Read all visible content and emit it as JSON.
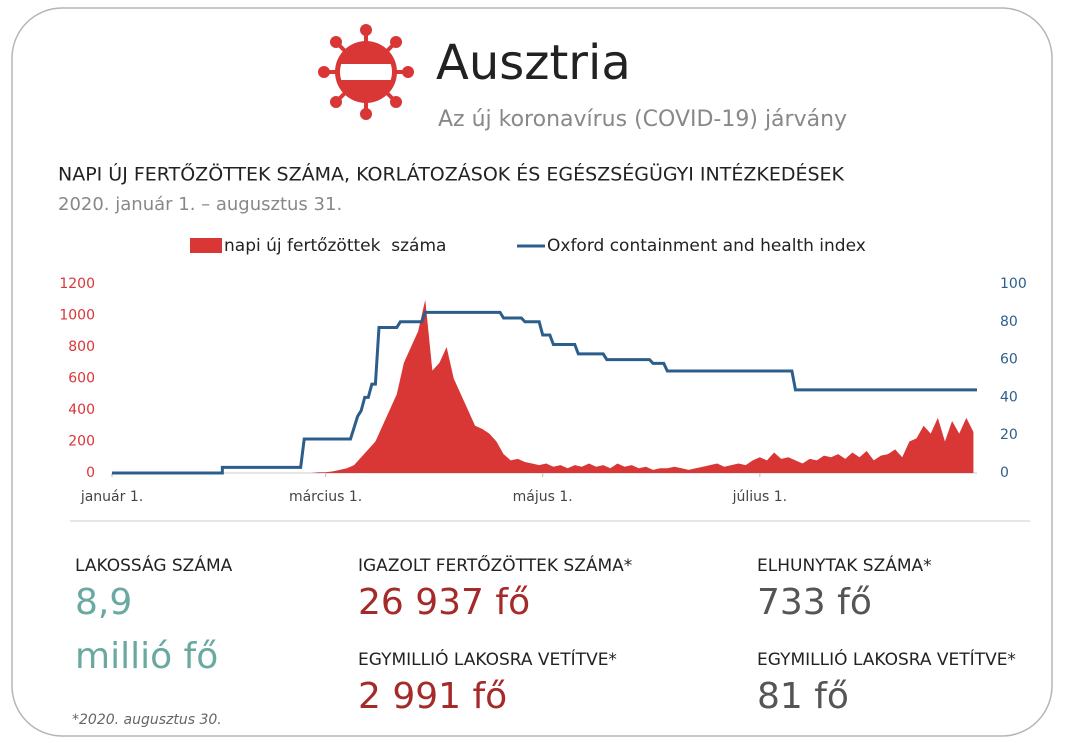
{
  "header": {
    "title": "Ausztria",
    "subtitle": "Az új koronavírus (COVID-19) járvány"
  },
  "chart_data": {
    "type": "line",
    "title": "NAPI ÚJ FERTŐZÖTTEK SZÁMA, KORLÁTOZÁSOK ÉS EGÉSZSÉGÜGYI INTÉZKEDÉSEK",
    "subtitle": "2020. január 1. – augusztus 31.",
    "xlim": [
      0,
      243
    ],
    "xticks": [
      {
        "value": 0,
        "label": "január 1."
      },
      {
        "value": 60,
        "label": "március 1."
      },
      {
        "value": 121,
        "label": "május 1."
      },
      {
        "value": 182,
        "label": "július 1."
      }
    ],
    "ylim": [
      0,
      1200
    ],
    "yticks": [
      0,
      200,
      400,
      600,
      800,
      1000,
      1200
    ],
    "y2lim": [
      0,
      100
    ],
    "y2ticks": [
      0,
      20,
      40,
      60,
      80,
      100
    ],
    "legend": "top",
    "series": [
      {
        "name": "napi új fertőzöttek  száma",
        "type": "area",
        "color": "#d93636",
        "x": [
          56,
          58,
          60,
          62,
          64,
          66,
          68,
          70,
          72,
          74,
          76,
          78,
          80,
          82,
          84,
          86,
          88,
          90,
          92,
          94,
          96,
          98,
          100,
          102,
          104,
          106,
          108,
          110,
          112,
          114,
          116,
          118,
          120,
          122,
          124,
          126,
          128,
          130,
          132,
          134,
          136,
          138,
          140,
          142,
          144,
          146,
          148,
          150,
          152,
          154,
          156,
          158,
          160,
          162,
          164,
          166,
          168,
          170,
          172,
          174,
          176,
          178,
          180,
          182,
          184,
          186,
          188,
          190,
          192,
          194,
          196,
          198,
          200,
          202,
          204,
          206,
          208,
          210,
          212,
          214,
          216,
          218,
          220,
          222,
          224,
          226,
          228,
          230,
          232,
          234,
          236,
          238,
          240,
          242
        ],
        "values": [
          0,
          5,
          5,
          10,
          20,
          30,
          50,
          100,
          150,
          200,
          300,
          400,
          500,
          700,
          800,
          900,
          1100,
          650,
          700,
          800,
          600,
          500,
          400,
          300,
          280,
          250,
          200,
          120,
          80,
          90,
          70,
          60,
          50,
          60,
          40,
          50,
          30,
          50,
          40,
          60,
          40,
          50,
          30,
          60,
          40,
          50,
          30,
          40,
          20,
          30,
          30,
          40,
          30,
          20,
          30,
          40,
          50,
          60,
          40,
          50,
          60,
          50,
          80,
          100,
          80,
          130,
          90,
          100,
          80,
          60,
          90,
          80,
          110,
          100,
          120,
          90,
          130,
          100,
          140,
          80,
          110,
          120,
          150,
          100,
          200,
          220,
          300,
          250,
          350,
          200,
          330,
          250,
          350,
          260
        ]
      },
      {
        "name": "Oxford containment and health index",
        "type": "line",
        "axis": "y2",
        "color": "#2c5e8c",
        "x": [
          0,
          31,
          31,
          53,
          54,
          67,
          68,
          69,
          70,
          71,
          72,
          73,
          74,
          75,
          80,
          81,
          87,
          88,
          109,
          110,
          115,
          116,
          120,
          121,
          123,
          124,
          130,
          131,
          138,
          139,
          151,
          152,
          155,
          156,
          191,
          192,
          243
        ],
        "values": [
          0,
          0,
          3,
          3,
          18,
          18,
          24,
          30,
          33,
          40,
          40,
          47,
          47,
          77,
          77,
          80,
          80,
          85,
          85,
          82,
          82,
          80,
          80,
          73,
          73,
          68,
          68,
          63,
          63,
          60,
          60,
          58,
          58,
          54,
          54,
          44,
          44
        ]
      }
    ]
  },
  "population": {
    "label": "LAKOSSÁG SZÁMA",
    "value": "8,9",
    "unit": "millió fő"
  },
  "cases": {
    "label": "IGAZOLT FERTŐZÖTTEK SZÁMA*",
    "value": "26 937 fő",
    "per_million_label": "EGYMILLIÓ LAKOSRA VETÍTVE*",
    "per_million": "2 991 fő"
  },
  "deaths": {
    "label": "ELHUNYTAK SZÁMA*",
    "value": "733 fő",
    "per_million_label": "EGYMILLIÓ LAKOSRA VETÍTVE*",
    "per_million": "81 fő"
  },
  "footnote": "*2020. augusztus 30."
}
